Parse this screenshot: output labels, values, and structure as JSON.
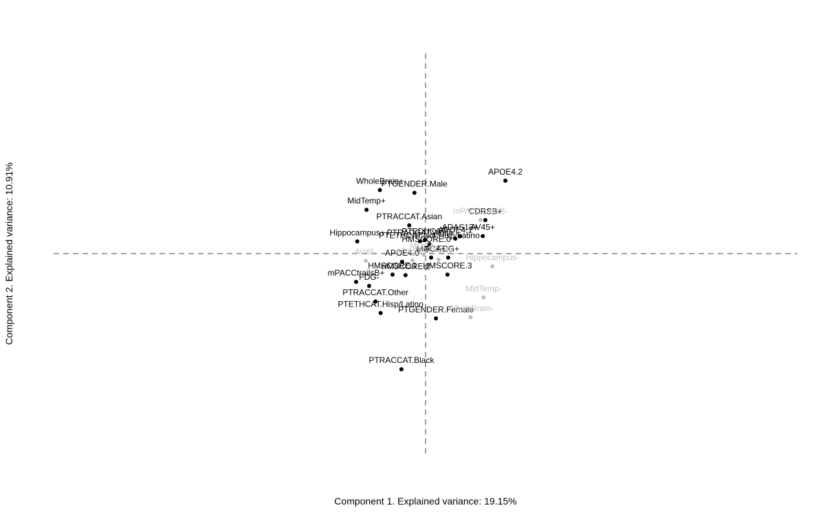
{
  "chart_data": {
    "type": "scatter",
    "title": "",
    "xlabel": "Component 1. Explained variance: 19.15%",
    "ylabel": "Component 2. Explained variance: 10.91%",
    "xlim": [
      -1.0,
      1.0
    ],
    "ylim": [
      -1.0,
      1.0
    ],
    "reference_lines": {
      "x": 0,
      "y": 0,
      "style": "dashed"
    },
    "grid": false,
    "legend": "none",
    "colors": {
      "active": "#000000",
      "supplementary": "#c0c0c0",
      "reference": "#808080"
    },
    "points": [
      {
        "label": "APOE4.2",
        "x": 0.215,
        "y": 0.366,
        "group": "active"
      },
      {
        "label": "WholeBrain+",
        "x": -0.123,
        "y": 0.319,
        "group": "active"
      },
      {
        "label": "PTGENDER.Male",
        "x": -0.03,
        "y": 0.305,
        "group": "active"
      },
      {
        "label": "MidTemp+",
        "x": -0.159,
        "y": 0.22,
        "group": "active"
      },
      {
        "label": "CDRSB+",
        "x": 0.161,
        "y": 0.168,
        "group": "active"
      },
      {
        "label": "PTRACCAT.Asian",
        "x": -0.044,
        "y": 0.142,
        "group": "active"
      },
      {
        "label": "ADAS13+",
        "x": 0.093,
        "y": 0.088,
        "group": "active"
      },
      {
        "label": "AV45+",
        "x": 0.154,
        "y": 0.088,
        "group": "active"
      },
      {
        "label": "APOE4.1",
        "x": 0.08,
        "y": 0.075,
        "group": "active"
      },
      {
        "label": "PTEDUCAT-",
        "x": -0.002,
        "y": 0.068,
        "group": "active"
      },
      {
        "label": "PTETHCAT.Not Hisp/Latino",
        "x": 0.01,
        "y": 0.047,
        "group": "active"
      },
      {
        "label": "PTRACCAT.White",
        "x": -0.015,
        "y": 0.061,
        "group": "active"
      },
      {
        "label": "HMSCORE.0",
        "x": 0.002,
        "y": 0.027,
        "group": "active"
      },
      {
        "label": "FDG+",
        "x": 0.061,
        "y": -0.02,
        "group": "active"
      },
      {
        "label": "Hippocampus+",
        "x": -0.184,
        "y": 0.061,
        "group": "active"
      },
      {
        "label": "MOCA+",
        "x": 0.015,
        "y": -0.02,
        "group": "active"
      },
      {
        "label": "APOE4.0",
        "x": -0.063,
        "y": -0.041,
        "group": "active"
      },
      {
        "label": "HMSCORE.3",
        "x": 0.059,
        "y": -0.105,
        "group": "active"
      },
      {
        "label": "HMSCORE.1",
        "x": -0.089,
        "y": -0.105,
        "group": "active"
      },
      {
        "label": "HMSCORE.2",
        "x": -0.054,
        "y": -0.108,
        "group": "active"
      },
      {
        "label": "mPACCtrailsB+",
        "x": -0.187,
        "y": -0.142,
        "group": "active"
      },
      {
        "label": "FDG-",
        "x": -0.152,
        "y": -0.162,
        "group": "active"
      },
      {
        "label": "PTRACCAT.Other",
        "x": -0.135,
        "y": -0.24,
        "group": "active"
      },
      {
        "label": "PTETHCAT.Hisp/Latino",
        "x": -0.121,
        "y": -0.298,
        "group": "active"
      },
      {
        "label": "PTGENDER.Female",
        "x": 0.028,
        "y": -0.325,
        "group": "active"
      },
      {
        "label": "PTRACCAT.Black",
        "x": -0.065,
        "y": -0.58,
        "group": "active"
      },
      {
        "label": "mPACCtrailsB-",
        "x": 0.148,
        "y": 0.169,
        "group": "supplementary"
      },
      {
        "label": "Hippocampus-",
        "x": 0.18,
        "y": -0.064,
        "group": "supplementary"
      },
      {
        "label": "MidTemp-",
        "x": 0.156,
        "y": -0.22,
        "group": "supplementary"
      },
      {
        "label": "WholeBrain-",
        "x": 0.121,
        "y": -0.319,
        "group": "supplementary"
      },
      {
        "label": "AV45-",
        "x": -0.161,
        "y": -0.036,
        "group": "supplementary"
      },
      {
        "label": "ADAS13-",
        "x": -0.035,
        "y": -0.034,
        "group": "supplementary"
      },
      {
        "label": "CDRSB-",
        "x": 0.035,
        "y": -0.03,
        "group": "supplementary"
      },
      {
        "label": "MOCA-",
        "x": -0.005,
        "y": -0.005,
        "group": "supplementary"
      }
    ]
  }
}
